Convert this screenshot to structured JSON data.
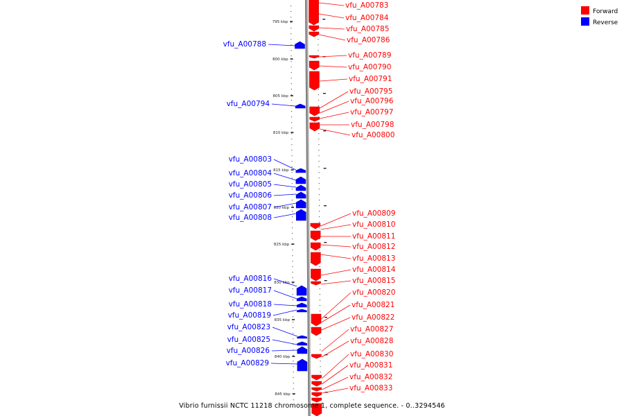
{
  "caption": "Vibrio furnissii NCTC 11218 chromosome 1, complete sequence. - 0..3294546",
  "legend": [
    {
      "label": "Forward",
      "color": "#ff0000"
    },
    {
      "label": "Reverse",
      "color": "#0000ff"
    }
  ],
  "colors": {
    "forward": "#ff0000",
    "reverse": "#0000ff",
    "axis": "#808080"
  },
  "ticks": [
    "795 kbp",
    "800 kbp",
    "805 kbp",
    "810 kbp",
    "815 kbp",
    "820 kbp",
    "825 kbp",
    "830 kbp",
    "835 kbp",
    "840 kbp",
    "845 kbp"
  ],
  "forward_genes": [
    "vfu_A00783",
    "vfu_A00784",
    "vfu_A00785",
    "vfu_A00786",
    "vfu_A00789",
    "vfu_A00790",
    "vfu_A00791",
    "vfu_A00795",
    "vfu_A00796",
    "vfu_A00797",
    "vfu_A00798",
    "vfu_A00800",
    "vfu_A00809",
    "vfu_A00810",
    "vfu_A00811",
    "vfu_A00812",
    "vfu_A00813",
    "vfu_A00814",
    "vfu_A00815",
    "vfu_A00820",
    "vfu_A00821",
    "vfu_A00822",
    "vfu_A00827",
    "vfu_A00828",
    "vfu_A00830",
    "vfu_A00831",
    "vfu_A00832",
    "vfu_A00833"
  ],
  "reverse_genes": [
    "vfu_A00788",
    "vfu_A00794",
    "vfu_A00803",
    "vfu_A00804",
    "vfu_A00805",
    "vfu_A00806",
    "vfu_A00807",
    "vfu_A00808",
    "vfu_A00816",
    "vfu_A00817",
    "vfu_A00818",
    "vfu_A00819",
    "vfu_A00823",
    "vfu_A00825",
    "vfu_A00826",
    "vfu_A00829"
  ]
}
